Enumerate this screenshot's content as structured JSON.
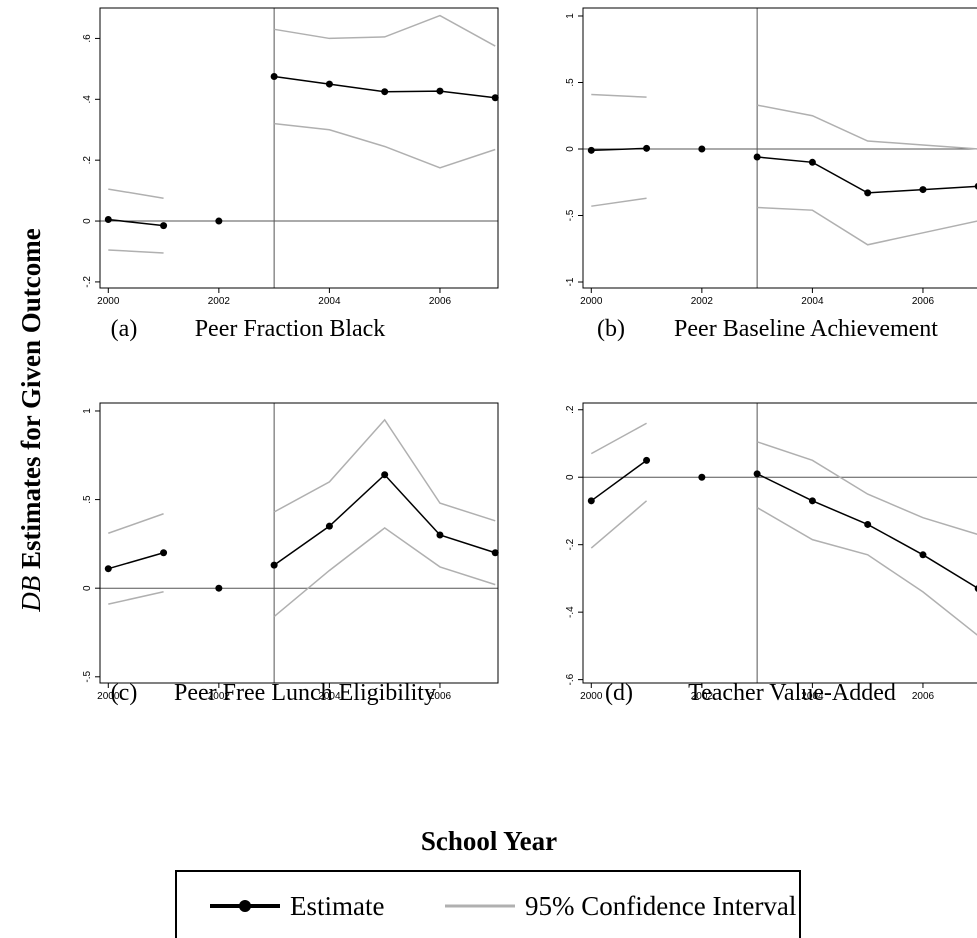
{
  "chart_data": [
    {
      "type": "line",
      "label": "(a)",
      "caption": "Peer Fraction Black",
      "x": [
        2000,
        2001,
        2002,
        2003,
        2004,
        2005,
        2006,
        2007
      ],
      "series": [
        {
          "name": "Estimate",
          "color": "#000000",
          "values": [
            0.005,
            -0.015,
            0,
            0.475,
            0.45,
            0.425,
            0.427,
            0.405
          ]
        },
        {
          "name": "95% Confidence Interval",
          "color": "#b0b0b0",
          "upper": [
            0.105,
            0.075,
            null,
            0.63,
            0.6,
            0.605,
            0.675,
            0.575
          ],
          "lower": [
            -0.095,
            -0.105,
            null,
            0.32,
            0.3,
            0.245,
            0.175,
            0.235
          ]
        }
      ],
      "xlim": [
        1999.85,
        2007.05
      ],
      "ylim": [
        -0.22,
        0.7
      ],
      "xticks": [
        2000,
        2002,
        2004,
        2006
      ],
      "yticks": [
        {
          "value": -0.2,
          "label": "-.2"
        },
        0,
        {
          "value": 0.2,
          "label": ".2"
        },
        {
          "value": 0.4,
          "label": ".4"
        },
        {
          "value": 0.6,
          "label": ".6"
        }
      ],
      "vline": 2003,
      "hline": 0
    },
    {
      "type": "line",
      "label": "(b)",
      "caption": "Peer Baseline Achievement",
      "x": [
        2000,
        2001,
        2002,
        2003,
        2004,
        2005,
        2006,
        2007
      ],
      "series": [
        {
          "name": "Estimate",
          "color": "#000000",
          "values": [
            -0.01,
            0.005,
            0,
            -0.06,
            -0.1,
            -0.33,
            -0.305,
            -0.28
          ]
        },
        {
          "name": "95% Confidence Interval",
          "color": "#b0b0b0",
          "upper": [
            0.41,
            0.39,
            null,
            0.33,
            0.25,
            0.06,
            0.03,
            0.0
          ],
          "lower": [
            -0.43,
            -0.37,
            null,
            -0.44,
            -0.46,
            -0.72,
            -0.63,
            -0.54
          ]
        }
      ],
      "xlim": [
        1999.85,
        2007.05
      ],
      "ylim": [
        -1.045,
        1.06
      ],
      "xticks": [
        2000,
        2002,
        2004,
        2006
      ],
      "yticks": [
        -1,
        {
          "value": -0.5,
          "label": "-.5"
        },
        0,
        {
          "value": 0.5,
          "label": ".5"
        },
        1
      ],
      "vline": 2003,
      "hline": 0
    },
    {
      "type": "line",
      "label": "(c)",
      "caption": "Peer Free Lunch Eligibility",
      "x": [
        2000,
        2001,
        2002,
        2003,
        2004,
        2005,
        2006,
        2007
      ],
      "series": [
        {
          "name": "Estimate",
          "color": "#000000",
          "values": [
            0.11,
            0.2,
            0,
            0.13,
            0.35,
            0.64,
            0.3,
            0.2
          ]
        },
        {
          "name": "95% Confidence Interval",
          "color": "#b0b0b0",
          "upper": [
            0.31,
            0.42,
            null,
            0.43,
            0.6,
            0.95,
            0.48,
            0.38
          ],
          "lower": [
            -0.09,
            -0.02,
            null,
            -0.16,
            0.1,
            0.34,
            0.12,
            0.02
          ]
        }
      ],
      "xlim": [
        1999.85,
        2007.05
      ],
      "ylim": [
        -0.535,
        1.045
      ],
      "xticks": [
        2000,
        2002,
        2004,
        2006
      ],
      "yticks": [
        {
          "value": -0.5,
          "label": "-.5"
        },
        0,
        {
          "value": 0.5,
          "label": ".5"
        },
        1
      ],
      "vline": 2003,
      "hline": 0
    },
    {
      "type": "line",
      "label": "(d)",
      "caption": "Teacher Value-Added",
      "x": [
        2000,
        2001,
        2002,
        2003,
        2004,
        2005,
        2006,
        2007
      ],
      "series": [
        {
          "name": "Estimate",
          "color": "#000000",
          "values": [
            -0.07,
            0.05,
            0,
            0.01,
            -0.07,
            -0.14,
            -0.23,
            -0.33
          ]
        },
        {
          "name": "95% Confidence Interval",
          "color": "#b0b0b0",
          "upper": [
            0.07,
            0.16,
            null,
            0.105,
            0.05,
            -0.05,
            -0.12,
            -0.17
          ],
          "lower": [
            -0.21,
            -0.07,
            null,
            -0.09,
            -0.185,
            -0.23,
            -0.34,
            -0.47
          ]
        }
      ],
      "xlim": [
        1999.85,
        2007.05
      ],
      "ylim": [
        -0.61,
        0.22
      ],
      "xticks": [
        2000,
        2002,
        2004,
        2006
      ],
      "yticks": [
        {
          "value": -0.6,
          "label": "-.6"
        },
        {
          "value": -0.4,
          "label": "-.4"
        },
        {
          "value": -0.2,
          "label": "-.2"
        },
        0,
        {
          "value": 0.2,
          "label": ".2"
        }
      ],
      "vline": 2003,
      "hline": 0
    }
  ],
  "figure": {
    "y_label_var": "DB",
    "y_label": "Estimates for Given Outcome",
    "x_label": "School Year"
  }
}
